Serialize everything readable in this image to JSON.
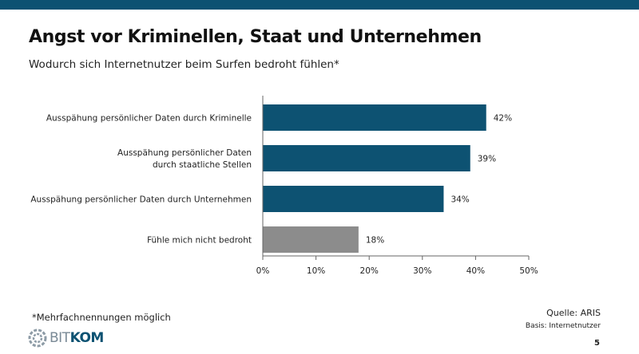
{
  "header": {
    "title": "Angst vor Kriminellen, Staat und Unternehmen",
    "subtitle": "Wodurch sich Internetnutzer beim Surfen bedroht fühlen*"
  },
  "colors": {
    "primary_bar": "#0d5272",
    "neutral_bar": "#8c8c8c",
    "top_bar": "#0d5272"
  },
  "chart_data": {
    "type": "bar",
    "orientation": "horizontal",
    "categories": [
      [
        "Ausspähung persönlicher Daten durch Kriminelle"
      ],
      [
        "Ausspähung persönlicher Daten",
        "durch staatliche Stellen"
      ],
      [
        "Ausspähung persönlicher Daten durch Unternehmen"
      ],
      [
        "Fühle mich nicht bedroht"
      ]
    ],
    "values": [
      42,
      39,
      34,
      18
    ],
    "data_labels": [
      "42%",
      "39%",
      "34%",
      "18%"
    ],
    "bar_color_keys": [
      "primary_bar",
      "primary_bar",
      "primary_bar",
      "neutral_bar"
    ],
    "x_ticks": [
      0,
      10,
      20,
      30,
      40,
      50
    ],
    "x_tick_labels": [
      "0%",
      "10%",
      "20%",
      "30%",
      "40%",
      "50%"
    ],
    "xlim": [
      0,
      50
    ],
    "title": "",
    "xlabel": "",
    "ylabel": "",
    "grid": false,
    "legend": "none"
  },
  "footer": {
    "note": "*Mehrfachnennungen möglich",
    "source": "Quelle: ARIS",
    "basis": "Basis: Internetnutzer",
    "page_number": "5",
    "logo_part1": "BIT",
    "logo_part2": "KOM"
  }
}
